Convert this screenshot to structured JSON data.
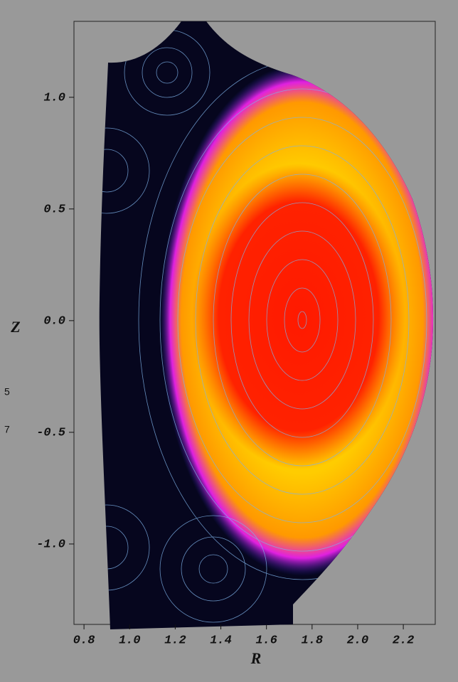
{
  "chart_data": {
    "type": "image",
    "xlabel": "R",
    "ylabel": "Z",
    "xlim": [
      0.756,
      2.34
    ],
    "ylim": [
      -1.36,
      1.34
    ],
    "xticks": [
      {
        "value": 0.8,
        "label": "0.8"
      },
      {
        "value": 1,
        "label": "1.0"
      },
      {
        "value": 1.2,
        "label": "1.2"
      },
      {
        "value": 1.4,
        "label": "1.4"
      },
      {
        "value": 1.6,
        "label": "1.6"
      },
      {
        "value": 1.8,
        "label": "1.8"
      },
      {
        "value": 2,
        "label": "2.0"
      },
      {
        "value": 2.2,
        "label": "2.2"
      }
    ],
    "yticks": [
      {
        "value": 1,
        "label": "1.0"
      },
      0.5,
      {
        "value": 0,
        "label": "0.0"
      },
      -0.5,
      {
        "value": -1,
        "label": "-1.0"
      }
    ],
    "annotations": [
      "5",
      "7"
    ]
  }
}
